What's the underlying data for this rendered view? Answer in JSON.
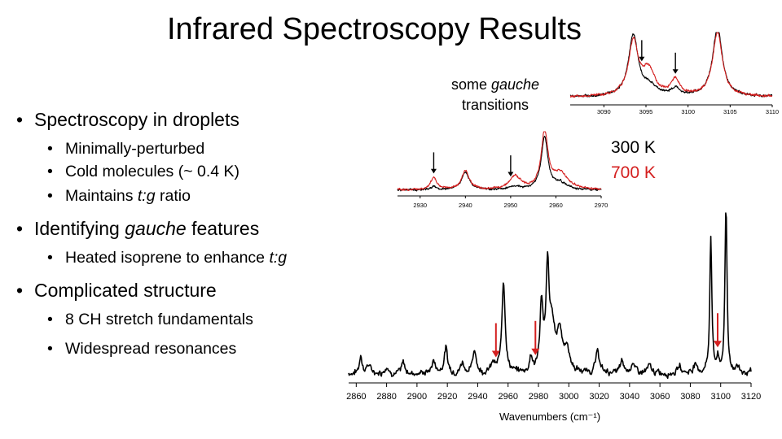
{
  "slide": {
    "title": "Infrared Spectroscopy Results",
    "bullets": [
      {
        "level": 1,
        "parts": [
          {
            "t": "Spectroscopy in droplets",
            "i": false
          }
        ]
      },
      {
        "level": 2,
        "parts": [
          {
            "t": "Minimally-perturbed",
            "i": false
          }
        ]
      },
      {
        "level": 2,
        "parts": [
          {
            "t": "Cold molecules (~ 0.4 K)",
            "i": false
          }
        ]
      },
      {
        "level": 2,
        "parts": [
          {
            "t": "Maintains ",
            "i": false
          },
          {
            "t": "t:g",
            "i": true
          },
          {
            "t": " ratio",
            "i": false
          }
        ]
      },
      {
        "level": 1,
        "parts": [
          {
            "t": "Identifying ",
            "i": false
          },
          {
            "t": "gauche",
            "i": true
          },
          {
            "t": " features",
            "i": false
          }
        ]
      },
      {
        "level": 2,
        "parts": [
          {
            "t": "Heated isoprene to enhance ",
            "i": false
          },
          {
            "t": "t:g",
            "i": true
          }
        ]
      },
      {
        "level": 1,
        "parts": [
          {
            "t": "Complicated structure",
            "i": false
          }
        ]
      },
      {
        "level": 2,
        "parts": [
          {
            "t": "8 CH stretch fundamentals",
            "i": false
          }
        ]
      },
      {
        "level": 2,
        "parts": [
          {
            "t": "Widespread resonances",
            "i": false
          }
        ]
      }
    ],
    "annotation": {
      "line1_pre": "some ",
      "line1_italic": "gauche",
      "line2": "transitions"
    },
    "legend": {
      "label_300": "300 K",
      "label_700": "700 K",
      "color_300": "#000000",
      "color_700": "#d42020"
    },
    "bullet_glyph": "•"
  },
  "chart_data": [
    {
      "type": "line",
      "role": "main-spectrum",
      "xlabel": "Wavenumbers (cm⁻¹)",
      "ylabel": "",
      "xlim": [
        2855,
        3120
      ],
      "ylim": [
        0,
        1
      ],
      "xticks": [
        2860,
        2880,
        2900,
        2920,
        2940,
        2960,
        2980,
        3000,
        3020,
        3040,
        3060,
        3080,
        3100,
        3120
      ],
      "series": [
        {
          "color": "#000000",
          "baseline": 0.05,
          "noise": 0.018,
          "peaks": [
            {
              "x": 2863,
              "h": 0.11,
              "w": 1.0
            },
            {
              "x": 2868,
              "h": 0.05,
              "w": 1.5
            },
            {
              "x": 2880,
              "h": 0.04,
              "w": 1.5
            },
            {
              "x": 2891,
              "h": 0.06,
              "w": 1.2
            },
            {
              "x": 2911,
              "h": 0.07,
              "w": 1.5
            },
            {
              "x": 2919,
              "h": 0.15,
              "w": 1.3
            },
            {
              "x": 2930,
              "h": 0.06,
              "w": 1.5
            },
            {
              "x": 2938,
              "h": 0.14,
              "w": 1.3
            },
            {
              "x": 2950,
              "h": 0.05,
              "w": 1.5
            },
            {
              "x": 2957,
              "h": 0.55,
              "w": 1.3
            },
            {
              "x": 2975,
              "h": 0.09,
              "w": 1.0
            },
            {
              "x": 2982,
              "h": 0.4,
              "w": 1.2
            },
            {
              "x": 2986,
              "h": 0.58,
              "w": 1.2
            },
            {
              "x": 2989,
              "h": 0.25,
              "w": 2.0
            },
            {
              "x": 2994,
              "h": 0.24,
              "w": 2.2
            },
            {
              "x": 2999,
              "h": 0.12,
              "w": 2.0
            },
            {
              "x": 3019,
              "h": 0.13,
              "w": 1.4
            },
            {
              "x": 3035,
              "h": 0.06,
              "w": 1.5
            },
            {
              "x": 3042,
              "h": 0.06,
              "w": 1.5
            },
            {
              "x": 3053,
              "h": 0.04,
              "w": 1.5
            },
            {
              "x": 3073,
              "h": 0.04,
              "w": 1.5
            },
            {
              "x": 3083,
              "h": 0.05,
              "w": 1.5
            },
            {
              "x": 3093.5,
              "h": 0.82,
              "w": 0.8
            },
            {
              "x": 3098,
              "h": 0.07,
              "w": 1.0
            },
            {
              "x": 3103.5,
              "h": 0.98,
              "w": 0.8
            },
            {
              "x": 3111,
              "h": 0.04,
              "w": 1.5
            }
          ]
        }
      ],
      "arrows": [
        {
          "x": 2952,
          "color": "#d42020"
        },
        {
          "x": 2978,
          "color": "#d42020"
        },
        {
          "x": 3098,
          "color": "#d42020"
        }
      ]
    },
    {
      "type": "line",
      "role": "inset-low",
      "xlabel": "",
      "ylabel": "",
      "xlim": [
        2925,
        2970
      ],
      "ylim": [
        0,
        1
      ],
      "xticks": [
        2930,
        2940,
        2950,
        2960,
        2970
      ],
      "series": [
        {
          "color": "#000000",
          "baseline": 0.08,
          "noise": 0.015,
          "peaks": [
            {
              "x": 2933,
              "h": 0.05,
              "w": 0.8
            },
            {
              "x": 2940,
              "h": 0.28,
              "w": 1.0
            },
            {
              "x": 2951,
              "h": 0.05,
              "w": 1.5
            },
            {
              "x": 2957.5,
              "h": 0.82,
              "w": 0.9
            },
            {
              "x": 2961,
              "h": 0.1,
              "w": 1.5
            }
          ]
        },
        {
          "color": "#d42020",
          "baseline": 0.08,
          "noise": 0.015,
          "peaks": [
            {
              "x": 2933,
              "h": 0.2,
              "w": 0.8
            },
            {
              "x": 2940,
              "h": 0.3,
              "w": 1.0
            },
            {
              "x": 2951,
              "h": 0.2,
              "w": 1.5
            },
            {
              "x": 2957.5,
              "h": 0.88,
              "w": 0.9
            },
            {
              "x": 2961,
              "h": 0.25,
              "w": 2.0
            }
          ]
        }
      ],
      "arrows": [
        {
          "x": 2933,
          "color": "#000000"
        },
        {
          "x": 2950,
          "color": "#000000"
        }
      ]
    },
    {
      "type": "line",
      "role": "inset-high",
      "xlabel": "",
      "ylabel": "",
      "xlim": [
        3086,
        3110
      ],
      "ylim": [
        0,
        1
      ],
      "xticks": [
        3090,
        3095,
        3100,
        3105,
        3110
      ],
      "series": [
        {
          "color": "#000000",
          "baseline": 0.1,
          "noise": 0.015,
          "peaks": [
            {
              "x": 3093.5,
              "h": 0.85,
              "w": 0.7
            },
            {
              "x": 3095.5,
              "h": 0.12,
              "w": 1.0
            },
            {
              "x": 3098.5,
              "h": 0.1,
              "w": 0.6
            },
            {
              "x": 3103.5,
              "h": 0.95,
              "w": 0.7
            }
          ]
        },
        {
          "color": "#d42020",
          "baseline": 0.1,
          "noise": 0.015,
          "peaks": [
            {
              "x": 3093.5,
              "h": 0.75,
              "w": 0.7
            },
            {
              "x": 3095.3,
              "h": 0.35,
              "w": 0.9
            },
            {
              "x": 3098.5,
              "h": 0.22,
              "w": 0.6
            },
            {
              "x": 3103.5,
              "h": 0.9,
              "w": 0.7
            }
          ]
        }
      ],
      "arrows": [
        {
          "x": 3094.5,
          "color": "#000000"
        },
        {
          "x": 3098.5,
          "color": "#000000"
        }
      ]
    }
  ]
}
